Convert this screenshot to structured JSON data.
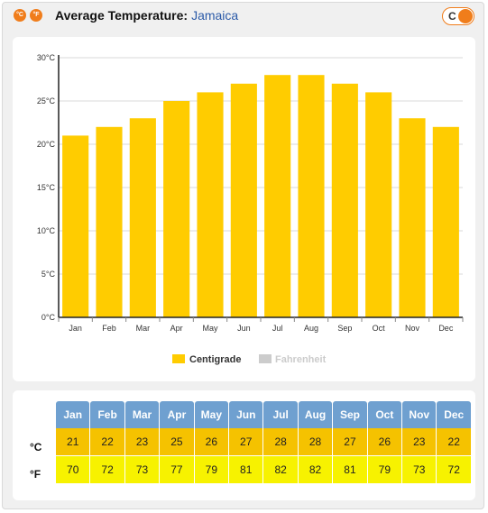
{
  "header": {
    "icon_c": "°C",
    "icon_f": "°F",
    "title": "Average Temperature:",
    "place": "Jamaica",
    "toggle_label": "C"
  },
  "colors": {
    "accent": "#f07d1b",
    "bar": "#ffcc00",
    "header_blue": "#6fa0d0",
    "celsius_row": "#f5c200",
    "fahrenheit_row": "#f7f200",
    "legend_off": "#cccccc"
  },
  "chart_data": {
    "type": "bar",
    "categories": [
      "Jan",
      "Feb",
      "Mar",
      "Apr",
      "May",
      "Jun",
      "Jul",
      "Aug",
      "Sep",
      "Oct",
      "Nov",
      "Dec"
    ],
    "series": [
      {
        "name": "Centigrade",
        "values": [
          21,
          22,
          23,
          25,
          26,
          27,
          28,
          28,
          27,
          26,
          23,
          22
        ]
      }
    ],
    "ylim": [
      0,
      30
    ],
    "yticks": [
      "0°C",
      "5°C",
      "10°C",
      "15°C",
      "20°C",
      "25°C",
      "30°C"
    ],
    "ytick_values": [
      0,
      5,
      10,
      15,
      20,
      25,
      30
    ],
    "grid": true,
    "legend": [
      "Centigrade",
      "Fahrenheit"
    ],
    "legend_placement": "bottom"
  },
  "table": {
    "months": [
      "Jan",
      "Feb",
      "Mar",
      "Apr",
      "May",
      "Jun",
      "Jul",
      "Aug",
      "Sep",
      "Oct",
      "Nov",
      "Dec"
    ],
    "celsius_label": "°C",
    "fahrenheit_label": "°F",
    "celsius": [
      "21",
      "22",
      "23",
      "25",
      "26",
      "27",
      "28",
      "28",
      "27",
      "26",
      "23",
      "22"
    ],
    "fahrenheit": [
      "70",
      "72",
      "73",
      "77",
      "79",
      "81",
      "82",
      "82",
      "81",
      "79",
      "73",
      "72"
    ]
  }
}
